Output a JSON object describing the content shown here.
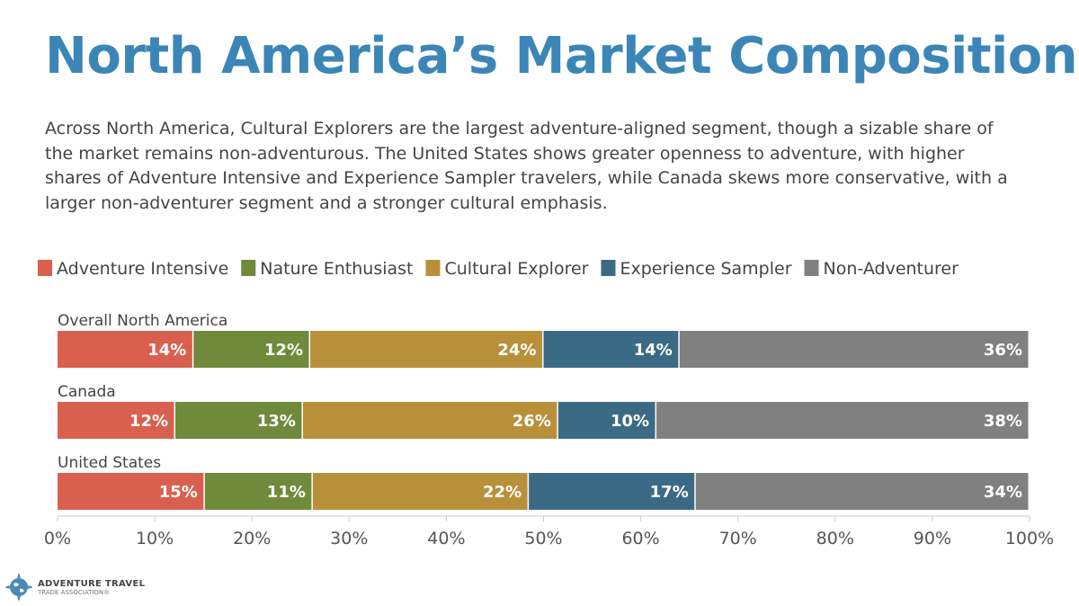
{
  "title": "North America’s Market Composition",
  "description": "Across North America, Cultural Explorers are the largest adventure-aligned segment, though a sizable share of the market remains non-adventurous. The United States shows greater openness to adventure, with higher shares of Adventure Intensive and Experience Sampler travelers, while Canada skews more conservative, with a larger non-adventurer segment and a stronger cultural emphasis.",
  "logo": {
    "line1": "ADVENTURE TRAVEL",
    "line2": "TRADE ASSOCIATION®"
  },
  "chart_data": {
    "type": "bar",
    "orientation": "horizontal",
    "stacked": true,
    "categories": [
      "Overall North America",
      "Canada",
      "United States"
    ],
    "series": [
      {
        "name": "Adventure Intensive",
        "color": "#d9604f",
        "values": [
          14,
          12,
          15
        ]
      },
      {
        "name": "Nature Enthusiast",
        "color": "#6f8a3b",
        "values": [
          12,
          13,
          11
        ]
      },
      {
        "name": "Cultural Explorer",
        "color": "#b8903a",
        "values": [
          24,
          26,
          22
        ]
      },
      {
        "name": "Experience Sampler",
        "color": "#3b6a85",
        "values": [
          14,
          10,
          17
        ]
      },
      {
        "name": "Non-Adventurer",
        "color": "#808080",
        "values": [
          36,
          38,
          34
        ]
      }
    ],
    "xlim": [
      0,
      100
    ],
    "xticks": [
      "0%",
      "10%",
      "20%",
      "30%",
      "40%",
      "50%",
      "60%",
      "70%",
      "80%",
      "90%",
      "100%"
    ],
    "value_suffix": "%",
    "legend": "top",
    "grid": false
  }
}
